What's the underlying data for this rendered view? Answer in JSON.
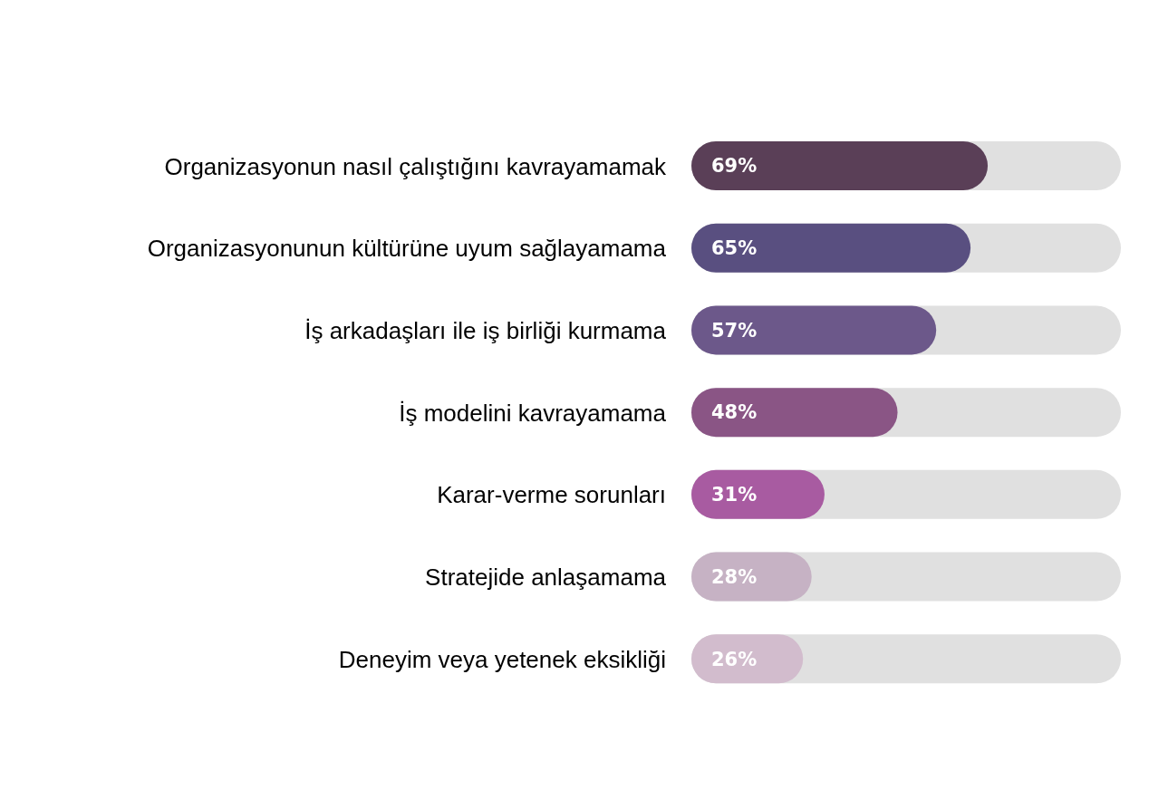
{
  "chart_data": {
    "type": "bar",
    "orientation": "horizontal",
    "categories": [
      "Organizasyonun nasıl çalıştığını kavrayamamak",
      "Organizasyonunun kültürüne uyum sağlayamama",
      "İş arkadaşları ile iş birliği kurmama",
      "İş modelini kavrayamama",
      "Karar-verme sorunları",
      "Stratejide anlaşamama",
      "Deneyim veya yetenek eksikliği"
    ],
    "values": [
      69,
      65,
      57,
      48,
      31,
      28,
      26
    ],
    "colors": [
      "#5a3f57",
      "#594f80",
      "#6c588a",
      "#8a5585",
      "#a85ba1",
      "#c6b2c4",
      "#d2bccd"
    ],
    "value_labels": [
      "69%",
      "65%",
      "57%",
      "48%",
      "31%",
      "28%",
      "26%"
    ],
    "xlim": [
      0,
      100
    ],
    "tick_labels": "y",
    "grid": false,
    "legend": false
  }
}
